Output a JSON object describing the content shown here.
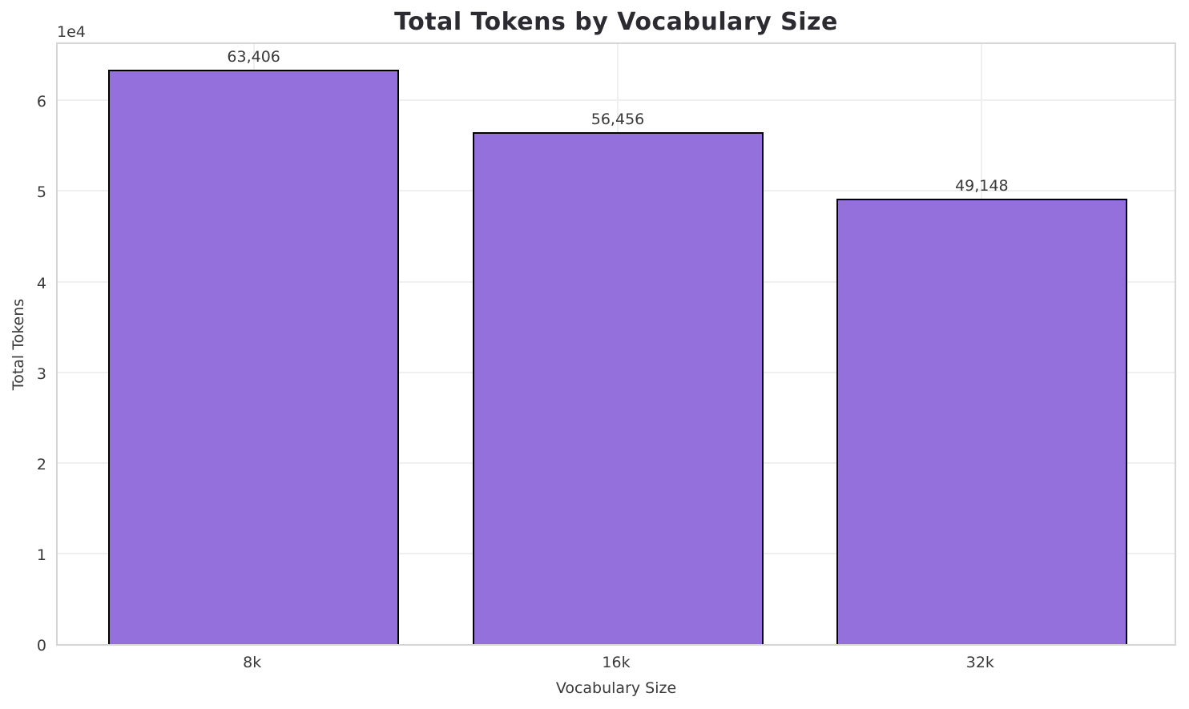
{
  "chart_data": {
    "type": "bar",
    "title": "Total Tokens by Vocabulary Size",
    "categories": [
      "8k",
      "16k",
      "32k"
    ],
    "values": [
      63406,
      56456,
      49148
    ],
    "value_labels": [
      "63,406",
      "56,456",
      "49,148"
    ],
    "xlabel": "Vocabulary Size",
    "ylabel": "Total Tokens",
    "y_offset_text": "1e4",
    "y_ticks": [
      0,
      1,
      2,
      3,
      4,
      5,
      6
    ],
    "y_tick_scale": 10000,
    "ylim": [
      0,
      66576
    ],
    "grid": true,
    "legend": null,
    "bar_color": "#9370DB",
    "bar_edge_color": "#000000",
    "grid_color": "#efefef",
    "spine_color": "#d6d6d6",
    "title_color": "#2b2b31",
    "tick_color": "#3a3a3a"
  }
}
